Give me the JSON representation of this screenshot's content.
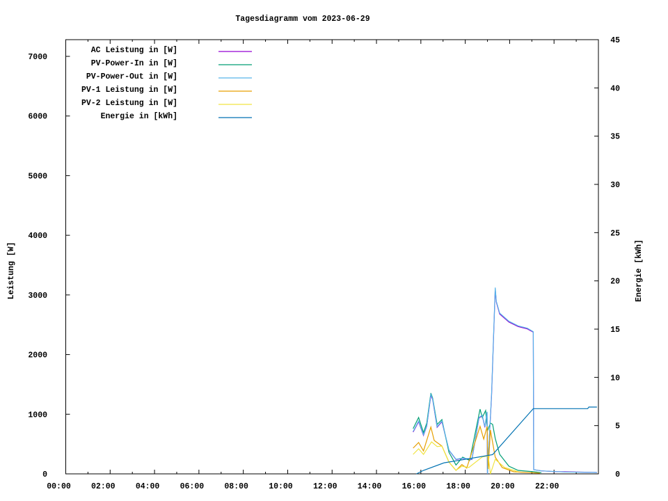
{
  "chart_data": {
    "type": "line",
    "title": "Tagesdiagramm vom 2023-06-29",
    "xlabel": "",
    "ylabel": "Leistung [W]",
    "y2label": "Energie [kWh]",
    "xlim": [
      "00:00",
      "24:00"
    ],
    "ylim": [
      0,
      7280
    ],
    "y2lim": [
      0,
      45
    ],
    "grid": false,
    "legend_position": "top-left",
    "x_ticks": [
      "00:00",
      "02:00",
      "04:00",
      "06:00",
      "08:00",
      "10:00",
      "12:00",
      "14:00",
      "16:00",
      "18:00",
      "20:00",
      "22:00"
    ],
    "y_ticks": [
      "0",
      "1000",
      "2000",
      "3000",
      "4000",
      "5000",
      "6000",
      "7000"
    ],
    "y2_ticks": [
      "0",
      "5",
      "10",
      "15",
      "20",
      "25",
      "30",
      "35",
      "40",
      "45"
    ],
    "series": [
      {
        "name": "AC Leistung in [W]",
        "axis": "y",
        "color": "#9400d3",
        "x": [
          "15:39",
          "15:54",
          "16:07",
          "16:16",
          "16:27",
          "16:32",
          "16:44",
          "16:57",
          "17:16",
          "17:35",
          "17:53",
          "18:18",
          "18:37",
          "18:46",
          "18:53",
          "18:59",
          "19:00",
          "19:11",
          "19:21",
          "19:24",
          "19:33",
          "19:58",
          "20:23",
          "20:48",
          "21:04",
          "21:05",
          "21:26",
          "22:00",
          "22:28",
          "23:56"
        ],
        "y": [
          700,
          875,
          645,
          800,
          1320,
          1245,
          780,
          875,
          395,
          240,
          260,
          240,
          935,
          975,
          780,
          1030,
          0,
          1300,
          3100,
          2880,
          2680,
          2545,
          2470,
          2430,
          2375,
          70,
          50,
          38,
          35,
          23
        ]
      },
      {
        "name": "PV-Power-In in [W]",
        "axis": "y",
        "color": "#009e73",
        "x": [
          "15:39",
          "15:54",
          "16:07",
          "16:16",
          "16:27",
          "16:32",
          "16:44",
          "16:57",
          "17:16",
          "17:26",
          "17:35",
          "17:53",
          "18:12",
          "18:40",
          "18:46",
          "18:55",
          "19:00",
          "19:08",
          "19:14",
          "19:21",
          "19:33",
          "19:58",
          "20:23",
          "21:06",
          "21:26"
        ],
        "y": [
          758,
          945,
          692,
          850,
          1353,
          1270,
          828,
          910,
          362,
          250,
          148,
          280,
          225,
          1085,
          945,
          1062,
          720,
          852,
          828,
          595,
          327,
          128,
          58,
          35,
          20
        ]
      },
      {
        "name": "PV-Power-Out in [W]",
        "axis": "y",
        "color": "#56b4e9",
        "x": [
          "15:39",
          "15:54",
          "16:07",
          "16:16",
          "16:27",
          "16:32",
          "16:44",
          "16:57",
          "17:16",
          "17:35",
          "17:53",
          "18:18",
          "18:37",
          "18:46",
          "18:53",
          "18:59",
          "19:00",
          "19:11",
          "19:21",
          "19:24",
          "19:33",
          "19:58",
          "20:23",
          "20:48",
          "21:04",
          "21:05",
          "21:26",
          "22:28",
          "23:56"
        ],
        "y": [
          711,
          887,
          653,
          808,
          1333,
          1256,
          790,
          887,
          400,
          245,
          265,
          245,
          945,
          983,
          790,
          1042,
          0,
          1320,
          3123,
          2893,
          2695,
          2558,
          2481,
          2442,
          2383,
          70,
          50,
          31,
          23
        ]
      },
      {
        "name": "PV-1 Leistung in [W]",
        "axis": "y",
        "color": "#e69f00",
        "x": [
          "15:39",
          "15:54",
          "16:07",
          "16:27",
          "16:36",
          "16:57",
          "17:16",
          "17:35",
          "17:51",
          "18:04",
          "18:40",
          "18:50",
          "18:59",
          "19:02",
          "19:08",
          "19:21",
          "19:40",
          "20:11",
          "21:22"
        ],
        "y": [
          432,
          525,
          385,
          785,
          560,
          467,
          198,
          58,
          155,
          97,
          797,
          583,
          793,
          82,
          735,
          280,
          105,
          35,
          12
        ]
      },
      {
        "name": "PV-2 Leistung in [W]",
        "axis": "y",
        "color": "#f0e442",
        "x": [
          "15:39",
          "15:54",
          "16:07",
          "16:29",
          "16:44",
          "16:57",
          "17:16",
          "17:35",
          "17:51",
          "18:10",
          "18:46",
          "19:02",
          "19:08",
          "19:21",
          "19:46",
          "20:23"
        ],
        "y": [
          327,
          420,
          327,
          537,
          458,
          467,
          195,
          60,
          128,
          108,
          283,
          303,
          0,
          245,
          108,
          35
        ]
      },
      {
        "name": "Energie in [kWh]",
        "axis": "y2",
        "color": "#0072b2",
        "x": [
          "15:48",
          "16:07",
          "17:03",
          "17:59",
          "18:55",
          "19:14",
          "21:04",
          "23:31",
          "23:34",
          "23:56"
        ],
        "y": [
          0,
          0.36,
          1.15,
          1.5,
          1.87,
          2.0,
          6.76,
          6.76,
          6.92,
          6.92
        ]
      }
    ]
  }
}
